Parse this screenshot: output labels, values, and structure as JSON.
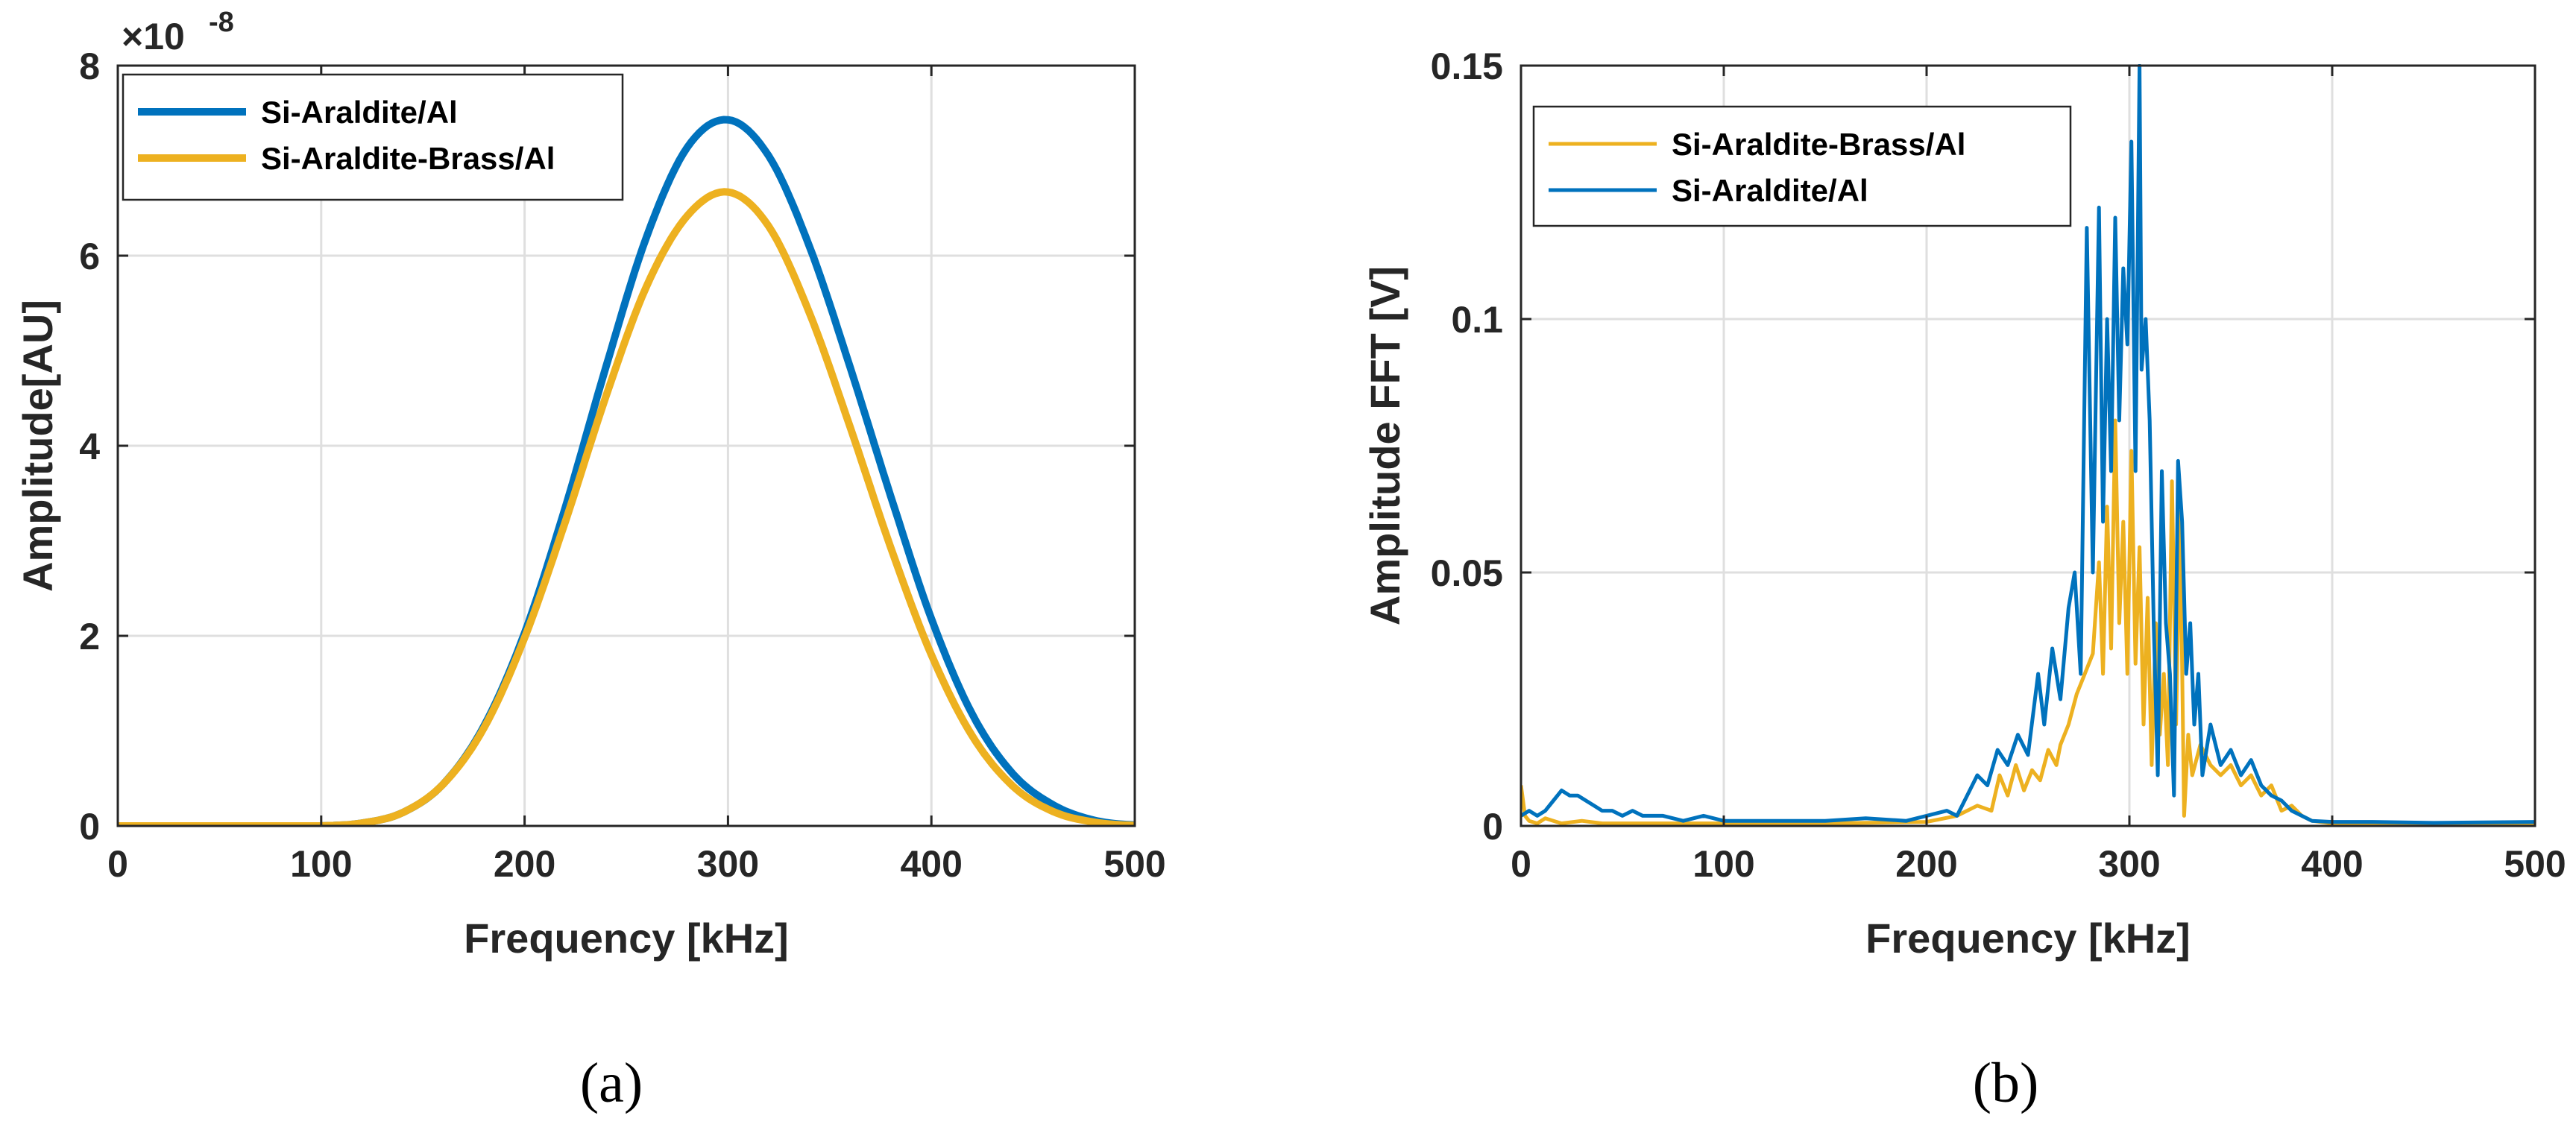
{
  "colors": {
    "blue": "#0072BD",
    "orange": "#EDB120",
    "axis": "#262626",
    "grid": "#dfdfdf"
  },
  "chart_data": [
    {
      "id": "a",
      "type": "line",
      "panel_label": "(a)",
      "title": "",
      "xlabel": "Frequency [kHz]",
      "ylabel": "Amplitude[AU]",
      "xlim": [
        0,
        500
      ],
      "ylim": [
        0,
        8
      ],
      "xticks": [
        0,
        100,
        200,
        300,
        400,
        500
      ],
      "xtick_labels": [
        "0",
        "100",
        "200",
        "300",
        "400",
        "500"
      ],
      "yticks": [
        0,
        2,
        4,
        6,
        8
      ],
      "ytick_labels": [
        "0",
        "2",
        "4",
        "6",
        "8"
      ],
      "exponent_label": "×10",
      "exponent_power": "-8",
      "grid": true,
      "legend_position": "top-left",
      "x": [
        0,
        50,
        100,
        120,
        140,
        160,
        180,
        200,
        220,
        240,
        260,
        280,
        300,
        320,
        340,
        360,
        380,
        400,
        420,
        440,
        460,
        480,
        500
      ],
      "series": [
        {
          "name": "Si-Araldite/Al",
          "color": "#0072BD",
          "values": [
            0,
            0,
            0.001,
            0.03,
            0.14,
            0.44,
            1.05,
            2.03,
            3.35,
            4.83,
            6.2,
            7.14,
            7.43,
            7.05,
            6.1,
            4.83,
            3.47,
            2.18,
            1.18,
            0.55,
            0.22,
            0.06,
            0.01
          ]
        },
        {
          "name": "Si-Araldite-Brass/Al",
          "color": "#EDB120",
          "values": [
            0,
            0,
            0.001,
            0.03,
            0.14,
            0.44,
            1.03,
            1.98,
            3.2,
            4.52,
            5.68,
            6.42,
            6.67,
            6.31,
            5.4,
            4.2,
            2.93,
            1.8,
            0.95,
            0.42,
            0.15,
            0.04,
            0.005
          ]
        }
      ]
    },
    {
      "id": "b",
      "type": "line",
      "panel_label": "(b)",
      "title": "",
      "xlabel": "Frequency [kHz]",
      "ylabel": "Amplitude FFT [V]",
      "xlim": [
        0,
        500
      ],
      "ylim": [
        0,
        0.15
      ],
      "xticks": [
        0,
        100,
        200,
        300,
        400,
        500
      ],
      "xtick_labels": [
        "0",
        "100",
        "200",
        "300",
        "400",
        "500"
      ],
      "yticks": [
        0,
        0.05,
        0.1,
        0.15
      ],
      "ytick_labels": [
        "0",
        "0.05",
        "0.1",
        "0.15"
      ],
      "grid": true,
      "legend_position": "top-left",
      "series": [
        {
          "name": "Si-Araldite-Brass/Al",
          "color": "#EDB120",
          "x": [
            0,
            2,
            4,
            8,
            12,
            16,
            20,
            30,
            40,
            60,
            80,
            100,
            150,
            200,
            215,
            225,
            232,
            236,
            240,
            244,
            248,
            252,
            256,
            260,
            264,
            266,
            270,
            274,
            278,
            282,
            285,
            287,
            289,
            291,
            293,
            295,
            297,
            299,
            301,
            303,
            305,
            307,
            309,
            311,
            313,
            315,
            317,
            319,
            321,
            323,
            325,
            327,
            329,
            331,
            335,
            340,
            345,
            350,
            355,
            360,
            365,
            370,
            375,
            380,
            385,
            390,
            400,
            420,
            450,
            500
          ],
          "values": [
            0.008,
            0.002,
            0.001,
            0.0005,
            0.0015,
            0.001,
            0.0005,
            0.001,
            0.0005,
            0.0005,
            0.0005,
            0.0005,
            0.0005,
            0.0008,
            0.002,
            0.004,
            0.003,
            0.01,
            0.006,
            0.012,
            0.007,
            0.011,
            0.009,
            0.015,
            0.012,
            0.016,
            0.02,
            0.026,
            0.03,
            0.034,
            0.052,
            0.03,
            0.063,
            0.035,
            0.08,
            0.04,
            0.06,
            0.03,
            0.074,
            0.032,
            0.055,
            0.02,
            0.045,
            0.012,
            0.04,
            0.018,
            0.03,
            0.012,
            0.068,
            0.02,
            0.062,
            0.002,
            0.018,
            0.01,
            0.016,
            0.012,
            0.01,
            0.012,
            0.008,
            0.01,
            0.006,
            0.008,
            0.003,
            0.004,
            0.002,
            0.001,
            0.0005,
            0.0005,
            0.0005,
            0.0005
          ]
        },
        {
          "name": "Si-Araldite/Al",
          "color": "#0072BD",
          "x": [
            0,
            4,
            8,
            12,
            16,
            20,
            24,
            28,
            32,
            36,
            40,
            45,
            50,
            55,
            60,
            70,
            80,
            90,
            100,
            110,
            130,
            150,
            170,
            190,
            200,
            210,
            215,
            220,
            225,
            230,
            235,
            240,
            245,
            250,
            255,
            258,
            262,
            266,
            270,
            273,
            276,
            279,
            282,
            285,
            287,
            289,
            291,
            293,
            295,
            297,
            299,
            301,
            303,
            305,
            306,
            308,
            310,
            312,
            314,
            316,
            318,
            320,
            322,
            324,
            326,
            328,
            330,
            332,
            334,
            336,
            340,
            345,
            350,
            355,
            360,
            365,
            370,
            375,
            380,
            385,
            390,
            400,
            420,
            450,
            500
          ],
          "values": [
            0.002,
            0.003,
            0.002,
            0.003,
            0.005,
            0.007,
            0.006,
            0.006,
            0.005,
            0.004,
            0.003,
            0.003,
            0.002,
            0.003,
            0.002,
            0.002,
            0.001,
            0.002,
            0.001,
            0.001,
            0.001,
            0.001,
            0.0015,
            0.001,
            0.002,
            0.003,
            0.002,
            0.006,
            0.01,
            0.008,
            0.015,
            0.012,
            0.018,
            0.014,
            0.03,
            0.02,
            0.035,
            0.025,
            0.043,
            0.05,
            0.03,
            0.118,
            0.05,
            0.122,
            0.06,
            0.1,
            0.07,
            0.12,
            0.08,
            0.11,
            0.095,
            0.135,
            0.07,
            0.15,
            0.09,
            0.1,
            0.08,
            0.04,
            0.01,
            0.07,
            0.04,
            0.03,
            0.006,
            0.072,
            0.06,
            0.03,
            0.04,
            0.02,
            0.03,
            0.01,
            0.02,
            0.012,
            0.015,
            0.01,
            0.013,
            0.008,
            0.006,
            0.005,
            0.003,
            0.002,
            0.001,
            0.0008,
            0.0008,
            0.0006,
            0.0008
          ]
        }
      ]
    }
  ]
}
